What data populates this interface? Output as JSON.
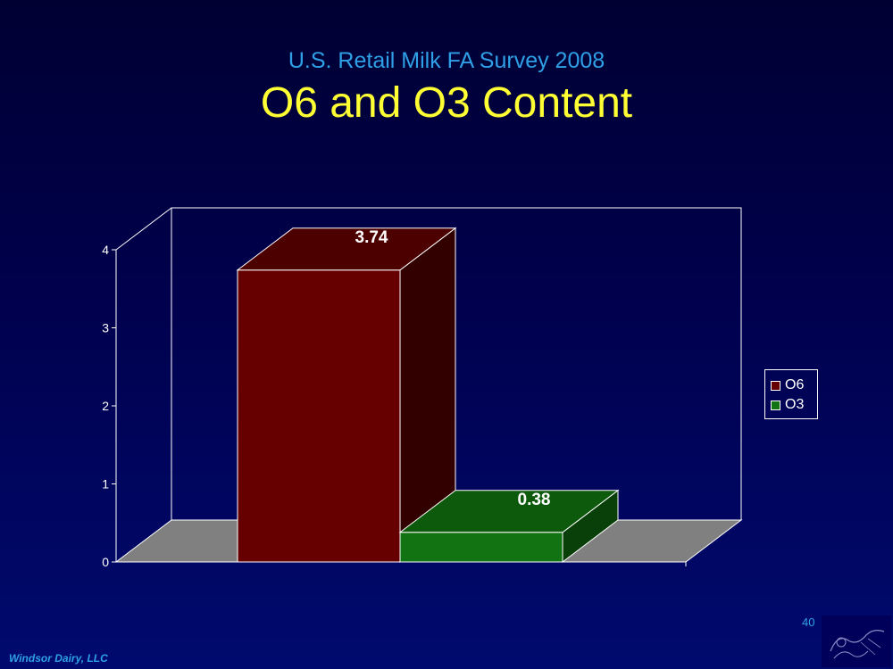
{
  "slide": {
    "subtitle": "U.S. Retail Milk FA Survey 2008",
    "title": "O6 and O3 Content",
    "page_number": "40",
    "footer": "Windsor Dairy, LLC"
  },
  "colors": {
    "o6_front": "#660000",
    "o6_top": "#4d0000",
    "o6_side": "#330000",
    "o3_front": "#127312",
    "o3_top": "#0d5a0d",
    "o3_side": "#093f09",
    "floor": "#808080"
  },
  "chart_data": {
    "type": "bar",
    "style": "3d",
    "categories": [
      ""
    ],
    "series": [
      {
        "name": "O6",
        "values": [
          3.74
        ],
        "color": "#660000"
      },
      {
        "name": "O3",
        "values": [
          0.38
        ],
        "color": "#127312"
      }
    ],
    "ylim": [
      0,
      4
    ],
    "yticks": [
      0,
      1,
      2,
      3,
      4
    ],
    "ytick_labels": [
      "0",
      "1",
      "2",
      "3",
      "4"
    ],
    "data_labels": [
      "3.74",
      "0.38"
    ],
    "legend": {
      "position": "right",
      "entries": [
        "O6",
        "O3"
      ]
    },
    "title": "",
    "xlabel": "",
    "ylabel": "",
    "grid": false
  }
}
